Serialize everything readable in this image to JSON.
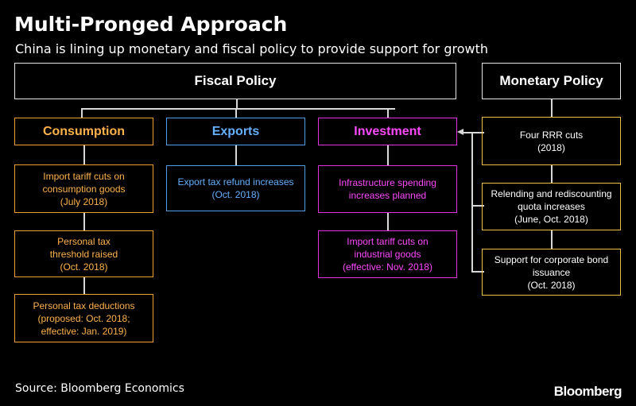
{
  "title": "Multi-Pronged Approach",
  "subtitle": "China is lining up monetary and fiscal policy to provide support for growth",
  "fiscal": {
    "label": "Fiscal Policy",
    "consumption": {
      "label": "Consumption",
      "items": [
        [
          "Import tariff cuts on",
          "consumption goods",
          "(July 2018)"
        ],
        [
          "Personal tax",
          "threshold raised",
          "(Oct. 2018)"
        ],
        [
          "Personal tax deductions",
          "(proposed: Oct. 2018;",
          "effective: Jan. 2019)"
        ]
      ]
    },
    "exports": {
      "label": "Exports",
      "items": [
        [
          "Export tax refund increases",
          "(Oct. 2018)"
        ]
      ]
    },
    "investment": {
      "label": "Investment",
      "items": [
        [
          "Infrastructure spending",
          "increases planned"
        ],
        [
          "Import tariff cuts on",
          "industrial goods",
          "(effective: Nov. 2018)"
        ]
      ]
    }
  },
  "monetary": {
    "label": "Monetary Policy",
    "items": [
      [
        "Four RRR cuts",
        "(2018)"
      ],
      [
        "Relending and rediscounting",
        "quota increases",
        "(June, Oct. 2018)"
      ],
      [
        "Support for corporate bond",
        "issuance",
        "(Oct. 2018)"
      ]
    ]
  },
  "source": "Source: Bloomberg Economics",
  "logo": "Bloomberg",
  "colors": {
    "consumption": "#f0a030",
    "exports": "#4f9fe8",
    "investment": "#e030e0",
    "monetary_items": "#f0c040"
  }
}
